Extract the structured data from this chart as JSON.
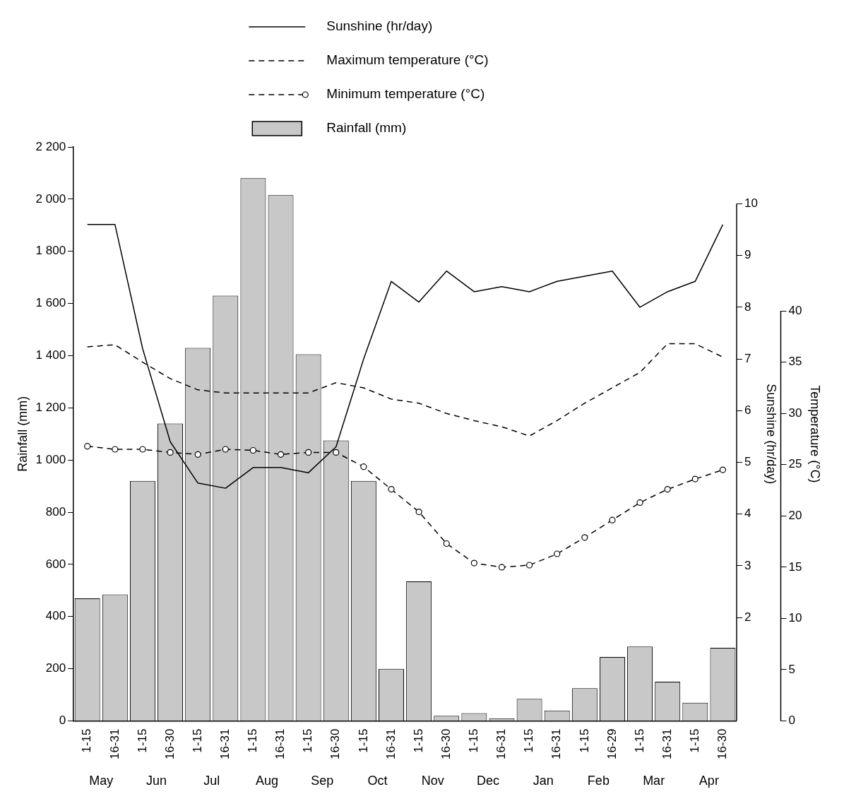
{
  "chart_data": {
    "type": "bar",
    "categories": [
      "1-15",
      "16-31",
      "1-15",
      "16-30",
      "1-15",
      "16-31",
      "1-15",
      "16-31",
      "1-15",
      "16-30",
      "1-15",
      "16-31",
      "1-15",
      "16-30",
      "1-15",
      "16-31",
      "1-15",
      "16-31",
      "1-15",
      "16-29",
      "1-15",
      "16-31",
      "1-15",
      "16-30"
    ],
    "series": [
      {
        "name": "Sunshine (hr/day)",
        "type": "line",
        "axis": "y2",
        "color": "#000000",
        "line_style": "solid",
        "marker": "none",
        "values": [
          9.6,
          9.6,
          7.2,
          5.4,
          4.6,
          4.5,
          4.9,
          4.9,
          4.8,
          5.3,
          7.0,
          8.5,
          8.1,
          8.7,
          8.3,
          8.4,
          8.3,
          8.5,
          8.6,
          8.7,
          8.0,
          8.3,
          8.5,
          9.6
        ]
      },
      {
        "name": "Maximum temperature (°C)",
        "type": "line",
        "axis": "y3",
        "color": "#000000",
        "line_style": "dashed",
        "marker": "none",
        "values": [
          36.5,
          36.7,
          35.0,
          33.4,
          32.3,
          32.0,
          32.0,
          32.0,
          32.0,
          33.0,
          32.5,
          31.4,
          31.0,
          30.0,
          29.3,
          28.7,
          27.8,
          29.3,
          31.0,
          32.5,
          34.0,
          36.8,
          36.8,
          35.5
        ]
      },
      {
        "name": "Minimum temperature (°C)",
        "type": "line",
        "axis": "y3",
        "color": "#000000",
        "line_style": "dashed",
        "marker": "circle",
        "values": [
          26.8,
          26.5,
          26.5,
          26.2,
          26.0,
          26.5,
          26.4,
          26.0,
          26.2,
          26.2,
          24.8,
          22.6,
          20.4,
          17.3,
          15.4,
          15.0,
          15.2,
          16.3,
          17.9,
          19.6,
          21.3,
          22.6,
          23.6,
          24.5
        ]
      },
      {
        "name": "Rainfall (mm)",
        "type": "bar",
        "color": "#c8c8c8",
        "values": [
          470,
          485,
          920,
          1140,
          1430,
          1630,
          2080,
          2015,
          1405,
          1075,
          920,
          200,
          535,
          20,
          30,
          10,
          85,
          40,
          125,
          245,
          285,
          150,
          70,
          280
        ]
      }
    ],
    "ylabel": "Rainfall (mm)",
    "y2label": "Sunshine (hr/day)",
    "y3label": "Temperature (°C)",
    "ylim": [
      0,
      2200
    ],
    "yticks": [
      0,
      200,
      400,
      600,
      800,
      {
        "value": 1000,
        "label": "1 000"
      },
      {
        "value": 1200,
        "label": "1 200"
      },
      {
        "value": 1400,
        "label": "1 400"
      },
      {
        "value": 1600,
        "label": "1 600"
      },
      {
        "value": 1800,
        "label": "1 800"
      },
      {
        "value": 2000,
        "label": "2 000"
      },
      {
        "value": 2200,
        "label": "2 200"
      }
    ],
    "y2lim": [
      0,
      11.1
    ],
    "y2ticks": [
      2,
      3,
      4,
      5,
      6,
      7,
      8,
      9,
      10
    ],
    "y3lim": [
      0,
      56
    ],
    "y3ticks": [
      0,
      5,
      10,
      15,
      20,
      25,
      30,
      35,
      40
    ],
    "annotations": [
      "May",
      "Jun",
      "Jul",
      "Aug",
      "Sep",
      "Oct",
      "Nov",
      "Dec",
      "Jan",
      "Feb",
      "Mar",
      "Apr"
    ],
    "legend": "top",
    "grid": false
  }
}
